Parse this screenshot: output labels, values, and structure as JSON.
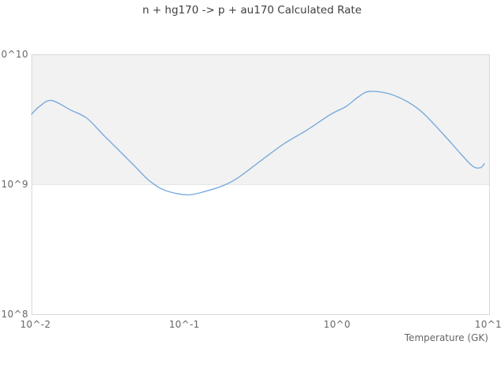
{
  "title": "n + hg170 -> p + au170 Calculated Rate",
  "chart_data": {
    "type": "line",
    "title": "n + hg170 -> p + au170 Calculated Rate",
    "xlabel": "Temperature (GK)",
    "ylabel": "",
    "x_scale": "log",
    "y_scale": "log",
    "xlim": [
      0.01,
      10
    ],
    "ylim": [
      100000000.0,
      10000000000.0
    ],
    "x_tick_labels": [
      "10^-2",
      "10^-1",
      "10^0",
      "10^1"
    ],
    "y_tick_labels": [
      "10^8",
      "10^9",
      "10^10"
    ],
    "grid": "off",
    "legend": "none",
    "alternate_band": {
      "from": 1000000000.0,
      "to": 10000000000.0,
      "color": "#f2f2f2"
    },
    "plot_border_color": "#d8d8d8",
    "gridline_color": "#e6e6e6",
    "series": [
      {
        "name": "calculated rate",
        "color": "#7aabdd",
        "points": [
          [
            0.01,
            3460000000.0
          ],
          [
            0.0113,
            3980000000.0
          ],
          [
            0.0135,
            4420000000.0
          ],
          [
            0.0181,
            3720000000.0
          ],
          [
            0.023,
            3230000000.0
          ],
          [
            0.0291,
            2440000000.0
          ],
          [
            0.0369,
            1850000000.0
          ],
          [
            0.0468,
            1400000000.0
          ],
          [
            0.0593,
            1060000000.0
          ],
          [
            0.0752,
            895000000.0
          ],
          [
            0.105,
            830000000.0
          ],
          [
            0.136,
            880000000.0
          ],
          [
            0.177,
            970000000.0
          ],
          [
            0.219,
            1100000000.0
          ],
          [
            0.313,
            1500000000.0
          ],
          [
            0.446,
            2040000000.0
          ],
          [
            0.637,
            2620000000.0
          ],
          [
            0.91,
            3460000000.0
          ],
          [
            1.15,
            3980000000.0
          ],
          [
            1.38,
            4710000000.0
          ],
          [
            1.65,
            5190000000.0
          ],
          [
            2.35,
            4840000000.0
          ],
          [
            3.48,
            3720000000.0
          ],
          [
            5.2,
            2280000000.0
          ],
          [
            6.3,
            1770000000.0
          ],
          [
            7.71,
            1380000000.0
          ],
          [
            8.67,
            1340000000.0
          ],
          [
            9.2,
            1440000000.0
          ]
        ]
      }
    ]
  }
}
